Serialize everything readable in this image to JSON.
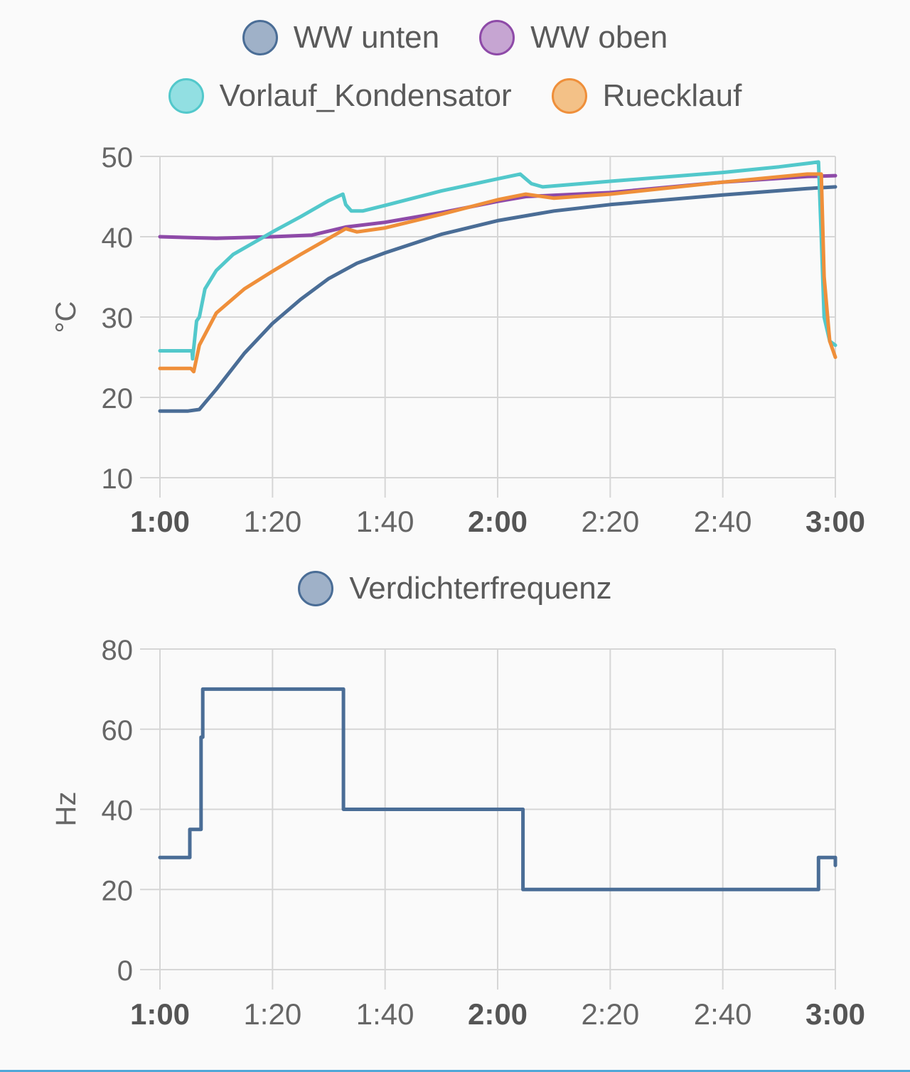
{
  "chart_data": [
    {
      "type": "line",
      "ylabel": "°C",
      "ylim": [
        10,
        50
      ],
      "yticks": [
        10,
        20,
        30,
        40,
        50
      ],
      "xlim": [
        "1:00",
        "3:00"
      ],
      "xticks": [
        "1:00",
        "1:20",
        "1:40",
        "2:00",
        "2:20",
        "2:40",
        "3:00"
      ],
      "xticks_bold": [
        "1:00",
        "2:00",
        "3:00"
      ],
      "grid": true,
      "legend_position": "top",
      "series": [
        {
          "name": "WW unten",
          "color": "#4a6d96",
          "fill": "#9fb1c8",
          "points": [
            [
              "1:00",
              18.3
            ],
            [
              "1:05",
              18.3
            ],
            [
              "1:07",
              18.5
            ],
            [
              "1:10",
              21
            ],
            [
              "1:15",
              25.5
            ],
            [
              "1:20",
              29.2
            ],
            [
              "1:25",
              32.2
            ],
            [
              "1:30",
              34.8
            ],
            [
              "1:35",
              36.7
            ],
            [
              "1:40",
              38
            ],
            [
              "1:50",
              40.3
            ],
            [
              "2:00",
              42
            ],
            [
              "2:10",
              43.2
            ],
            [
              "2:20",
              44
            ],
            [
              "2:40",
              45.2
            ],
            [
              "2:55",
              46
            ],
            [
              "3:00",
              46.2
            ]
          ]
        },
        {
          "name": "WW oben",
          "color": "#8e4aa8",
          "fill": "#c6a5d2",
          "points": [
            [
              "1:00",
              40
            ],
            [
              "1:10",
              39.8
            ],
            [
              "1:20",
              40
            ],
            [
              "1:27",
              40.2
            ],
            [
              "1:33",
              41.2
            ],
            [
              "1:40",
              41.8
            ],
            [
              "1:50",
              43
            ],
            [
              "2:00",
              44.4
            ],
            [
              "2:05",
              45
            ],
            [
              "2:20",
              45.5
            ],
            [
              "2:40",
              46.8
            ],
            [
              "2:55",
              47.5
            ],
            [
              "3:00",
              47.6
            ]
          ]
        },
        {
          "name": "Vorlauf_Kondensator",
          "color": "#52c8cb",
          "fill": "#92dfe2",
          "points": [
            [
              "1:00",
              25.8
            ],
            [
              "1:05.7",
              25.8
            ],
            [
              "1:05.8",
              24.8
            ],
            [
              "1:06.5",
              29.5
            ],
            [
              "1:07",
              30
            ],
            [
              "1:08",
              33.5
            ],
            [
              "1:10",
              35.8
            ],
            [
              "1:13",
              37.8
            ],
            [
              "1:20",
              40.6
            ],
            [
              "1:25",
              42.5
            ],
            [
              "1:30",
              44.5
            ],
            [
              "1:32.5",
              45.3
            ],
            [
              "1:33",
              44
            ],
            [
              "1:34",
              43.2
            ],
            [
              "1:36",
              43.2
            ],
            [
              "1:40",
              43.9
            ],
            [
              "1:50",
              45.7
            ],
            [
              "2:00",
              47.2
            ],
            [
              "2:04",
              47.8
            ],
            [
              "2:06",
              46.6
            ],
            [
              "2:08",
              46.2
            ],
            [
              "2:20",
              46.9
            ],
            [
              "2:40",
              48
            ],
            [
              "2:50",
              48.7
            ],
            [
              "2:57",
              49.3
            ],
            [
              "2:57.5",
              40
            ],
            [
              "2:58",
              30
            ],
            [
              "2:59",
              27
            ],
            [
              "3:00",
              26.5
            ]
          ]
        },
        {
          "name": "Ruecklauf",
          "color": "#ef8f3a",
          "fill": "#f3c187",
          "points": [
            [
              "1:00",
              23.6
            ],
            [
              "1:05.5",
              23.6
            ],
            [
              "1:06",
              23.2
            ],
            [
              "1:07",
              26.5
            ],
            [
              "1:10",
              30.5
            ],
            [
              "1:15",
              33.5
            ],
            [
              "1:20",
              35.7
            ],
            [
              "1:25",
              37.8
            ],
            [
              "1:30",
              39.8
            ],
            [
              "1:33",
              41
            ],
            [
              "1:35",
              40.6
            ],
            [
              "1:40",
              41.1
            ],
            [
              "1:50",
              42.8
            ],
            [
              "2:00",
              44.6
            ],
            [
              "2:05",
              45.3
            ],
            [
              "2:10",
              44.8
            ],
            [
              "2:20",
              45.3
            ],
            [
              "2:40",
              46.8
            ],
            [
              "2:55",
              47.8
            ],
            [
              "2:57.5",
              47.8
            ],
            [
              "2:58",
              35
            ],
            [
              "2:59",
              27
            ],
            [
              "3:00",
              25
            ]
          ]
        }
      ]
    },
    {
      "type": "line",
      "ylabel": "Hz",
      "ylim": [
        0,
        80
      ],
      "yticks": [
        0,
        20,
        40,
        60,
        80
      ],
      "xlim": [
        "1:00",
        "3:00"
      ],
      "xticks": [
        "1:00",
        "1:20",
        "1:40",
        "2:00",
        "2:20",
        "2:40",
        "3:00"
      ],
      "xticks_bold": [
        "1:00",
        "2:00",
        "3:00"
      ],
      "grid": true,
      "legend_position": "top",
      "series": [
        {
          "name": "Verdichterfrequenz",
          "color": "#4a6d96",
          "fill": "#9fb1c8",
          "step": true,
          "points": [
            [
              "1:00",
              28
            ],
            [
              "1:05.3",
              28
            ],
            [
              "1:05.3",
              35
            ],
            [
              "1:07.3",
              35
            ],
            [
              "1:07.3",
              58
            ],
            [
              "1:07.6",
              58
            ],
            [
              "1:07.6",
              70
            ],
            [
              "1:32.6",
              70
            ],
            [
              "1:32.6",
              40
            ],
            [
              "2:04.5",
              40
            ],
            [
              "2:04.5",
              20
            ],
            [
              "2:57",
              20
            ],
            [
              "2:57",
              28
            ],
            [
              "3:00",
              28
            ],
            [
              "3:00",
              26
            ]
          ]
        }
      ]
    }
  ]
}
